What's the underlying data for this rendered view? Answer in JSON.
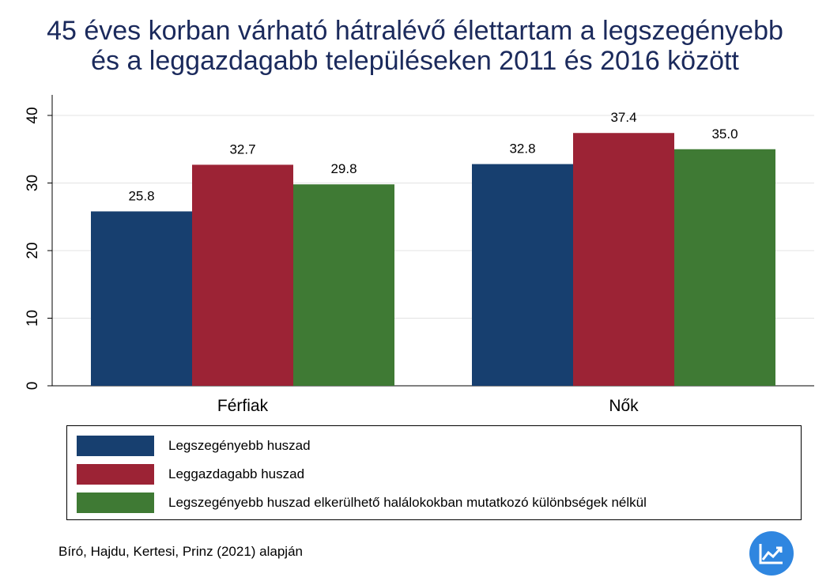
{
  "title_lines": [
    "45 éves korban várható hátralévő élettartam a legszegényebb",
    "és a leggazdagabb településeken 2011 és 2016 között"
  ],
  "source": "Bíró, Hajdu, Kertesi, Prinz (2021) alapján",
  "logo_icon": "chart-trend-icon",
  "chart_data": {
    "type": "bar",
    "title": "45 éves korban várható hátralévő élettartam a legszegényebb és a leggazdagabb településeken 2011 és 2016 között",
    "categories": [
      "Férfiak",
      "Nők"
    ],
    "series": [
      {
        "name": "Legszegényebb huszad",
        "color": "#173f6f",
        "values": [
          25.8,
          32.8
        ]
      },
      {
        "name": "Leggazdagabb huszad",
        "color": "#9c2335",
        "values": [
          32.7,
          37.4
        ]
      },
      {
        "name": "Legszegényebb huszad elkerülhető halálokokban mutatkozó különbségek nélkül",
        "color": "#3f7a34",
        "values": [
          29.8,
          35.0
        ]
      }
    ],
    "yticks": [
      0,
      10,
      20,
      30,
      40
    ],
    "ylim": [
      0,
      40
    ],
    "grid": true,
    "legend_position": "bottom",
    "value_labels": [
      "25.8",
      "32.7",
      "29.8",
      "32.8",
      "37.4",
      "35.0"
    ]
  }
}
